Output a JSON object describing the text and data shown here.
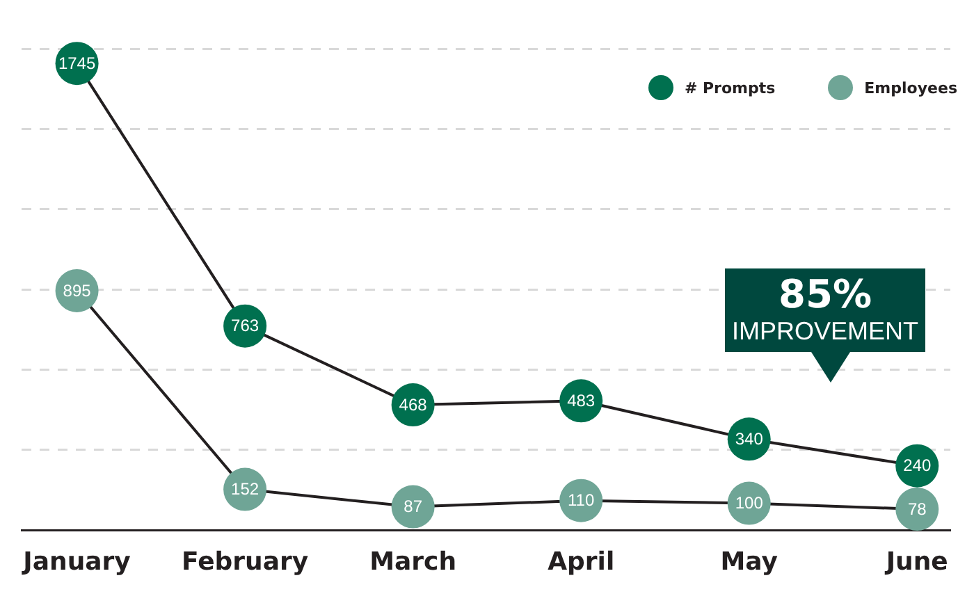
{
  "chart_data": {
    "type": "line",
    "categories": [
      "January",
      "February",
      "March",
      "April",
      "May",
      "June"
    ],
    "series": [
      {
        "name": "# Prompts",
        "color": "#00704f",
        "values": [
          1745,
          763,
          468,
          483,
          340,
          240
        ]
      },
      {
        "name": "Employees",
        "color": "#6fa596",
        "values": [
          895,
          152,
          87,
          110,
          100,
          78
        ]
      }
    ],
    "ylim": [
      0,
      1800
    ],
    "yticks": [
      {
        "value": 0,
        "label": null
      },
      {
        "value": 300,
        "label": null
      },
      {
        "value": 600,
        "label": null
      },
      {
        "value": 900,
        "label": null
      },
      {
        "value": 1200,
        "label": null
      },
      {
        "value": 1500,
        "label": null
      },
      {
        "value": 1800,
        "label": null
      }
    ],
    "tick_labels": "x",
    "grid": "y",
    "legend": "top right",
    "marker": "circle",
    "line_style": "solid",
    "data_labels": true,
    "annotations": [
      "85%",
      "IMPROVEMENT"
    ]
  }
}
